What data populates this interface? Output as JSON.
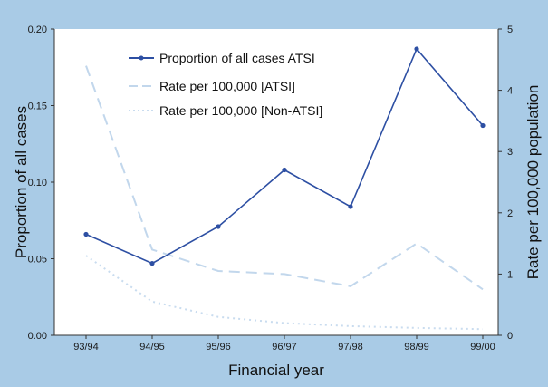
{
  "chart_data": {
    "type": "line",
    "categories": [
      "93/94",
      "94/95",
      "95/96",
      "96/97",
      "97/98",
      "98/99",
      "99/00"
    ],
    "xlabel": "Financial year",
    "ylabel_left": "Proportion of all cases",
    "ylabel_right": "Rate per 100,000 population",
    "ylim_left": [
      0.0,
      0.2
    ],
    "ylim_right": [
      0,
      5
    ],
    "yticks_left": [
      "0.00",
      "0.05",
      "0.10",
      "0.15",
      "0.20"
    ],
    "yticks_right": [
      "0",
      "1",
      "2",
      "3",
      "4",
      "5"
    ],
    "legend_position": "top-left",
    "grid": false,
    "series": [
      {
        "name": "Proportion of all cases ATSI",
        "axis": "left",
        "style": "solid-marker",
        "color": "#2d4fa3",
        "values": [
          0.066,
          0.047,
          0.071,
          0.108,
          0.084,
          0.187,
          0.137
        ]
      },
      {
        "name": "Rate per 100,000 [ATSI]",
        "axis": "right",
        "style": "dashed",
        "color": "#c2d7ec",
        "values": [
          4.4,
          1.4,
          1.05,
          1.0,
          0.8,
          1.5,
          0.75
        ]
      },
      {
        "name": "Rate per 100,000 [Non-ATSI]",
        "axis": "right",
        "style": "dotted",
        "color": "#c9dcef",
        "values": [
          1.3,
          0.55,
          0.3,
          0.2,
          0.15,
          0.12,
          0.1
        ]
      }
    ]
  }
}
